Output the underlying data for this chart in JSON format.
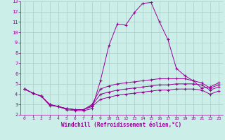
{
  "xlabel": "Windchill (Refroidissement éolien,°C)",
  "bg_color": "#cceee8",
  "line_color": "#990099",
  "grid_color": "#aacccc",
  "xlim": [
    -0.5,
    23.5
  ],
  "ylim": [
    2,
    13
  ],
  "yticks": [
    2,
    3,
    4,
    5,
    6,
    7,
    8,
    9,
    10,
    11,
    12,
    13
  ],
  "xticks": [
    0,
    1,
    2,
    3,
    4,
    5,
    6,
    7,
    8,
    9,
    10,
    11,
    12,
    13,
    14,
    15,
    16,
    17,
    18,
    19,
    20,
    21,
    22,
    23
  ],
  "series": [
    [
      4.5,
      4.1,
      3.8,
      2.9,
      2.8,
      2.5,
      2.4,
      2.4,
      2.6,
      5.3,
      8.7,
      10.8,
      10.7,
      11.9,
      12.8,
      12.9,
      11.0,
      9.3,
      6.5,
      5.8,
      5.3,
      4.6,
      4.7,
      5.1
    ],
    [
      4.5,
      4.1,
      3.8,
      3.0,
      2.8,
      2.6,
      2.5,
      2.5,
      3.0,
      4.5,
      4.8,
      5.0,
      5.1,
      5.2,
      5.3,
      5.4,
      5.5,
      5.5,
      5.5,
      5.5,
      5.3,
      5.1,
      4.6,
      4.9
    ],
    [
      4.5,
      4.1,
      3.8,
      3.0,
      2.8,
      2.6,
      2.5,
      2.5,
      2.9,
      4.0,
      4.2,
      4.4,
      4.5,
      4.6,
      4.7,
      4.8,
      4.9,
      4.9,
      5.0,
      5.0,
      5.0,
      4.9,
      4.4,
      4.7
    ],
    [
      4.5,
      4.1,
      3.8,
      3.0,
      2.8,
      2.6,
      2.5,
      2.5,
      2.8,
      3.5,
      3.7,
      3.9,
      4.0,
      4.1,
      4.2,
      4.3,
      4.4,
      4.4,
      4.5,
      4.5,
      4.5,
      4.4,
      4.0,
      4.3
    ]
  ]
}
